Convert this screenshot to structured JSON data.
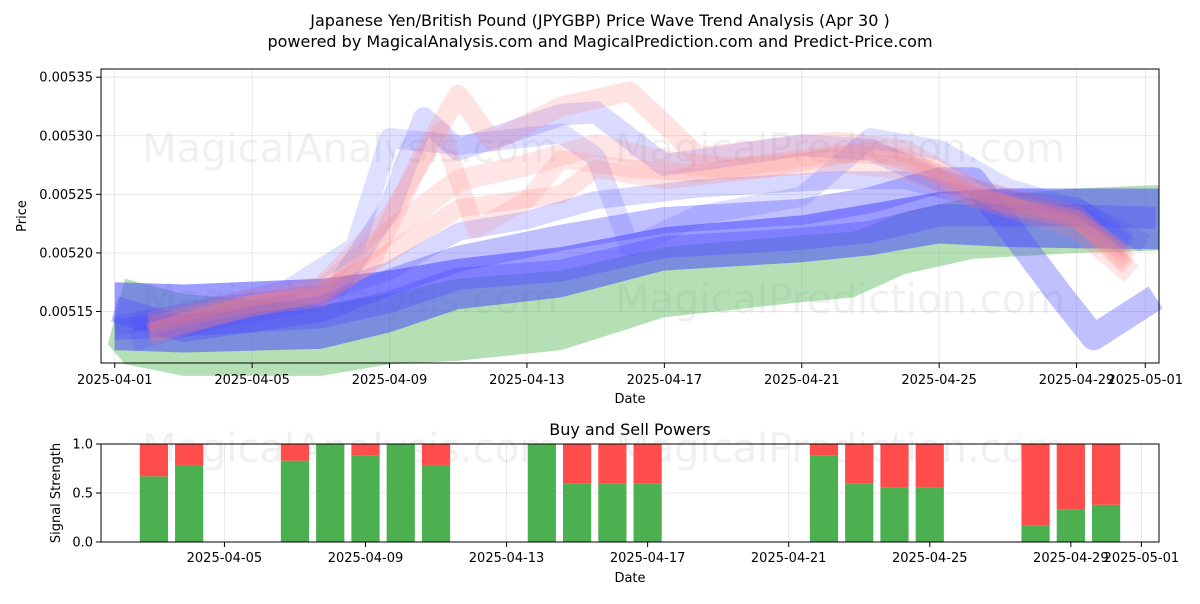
{
  "colors": {
    "buy": "#4caf50",
    "sell": "#ff4d4d",
    "blue_wave": "#4b4bff",
    "red_wave": "#ff8080",
    "green_wave": "#5cb85c"
  },
  "watermark": {
    "text_1": "MagicalAnalysis.com",
    "text_2": "MagicalPrediction.com"
  },
  "chart_data": [
    {
      "type": "area",
      "title": "Japanese Yen/British Pound (JPYGBP) Price Wave Trend Analysis (Apr 30 )",
      "subtitle": "powered by MagicalAnalysis.com and MagicalPrediction.com and Predict-Price.com",
      "xlabel": "Date",
      "ylabel": "Price",
      "x_tick_labels": [
        "2025-04-01",
        "2025-04-05",
        "2025-04-09",
        "2025-04-13",
        "2025-04-17",
        "2025-04-21",
        "2025-04-25",
        "2025-04-29",
        "2025-05-01"
      ],
      "x_tick_days": [
        0,
        4,
        8,
        12,
        16,
        20,
        24,
        28,
        30
      ],
      "y_tick_labels": [
        "0.00515",
        "0.00520",
        "0.00525",
        "0.00530",
        "0.00535"
      ],
      "y_tick_values": [
        0.00515,
        0.0052,
        0.00525,
        0.0053,
        0.00535
      ],
      "xlim": [
        -0.4,
        30.4
      ],
      "ylim": [
        0.005106,
        0.005357
      ],
      "grid": true,
      "band_series": [
        {
          "name": "green band",
          "color_key": "green_wave",
          "x": [
            -0.2,
            0.3,
            2,
            6,
            8,
            10,
            13,
            16,
            20,
            21.5,
            23,
            25,
            28,
            30.4
          ],
          "upper": [
            0.005122,
            0.005178,
            0.005165,
            0.005155,
            0.005165,
            0.005178,
            0.005185,
            0.005205,
            0.005215,
            0.005218,
            0.005235,
            0.005248,
            0.005255,
            0.005258
          ],
          "lower": [
            0.005122,
            0.005105,
            0.005095,
            0.005095,
            0.005105,
            0.005108,
            0.005117,
            0.005145,
            0.005158,
            0.005162,
            0.005182,
            0.005195,
            0.0052,
            0.005202
          ]
        },
        {
          "name": "blue band wide",
          "color_key": "blue_wave",
          "x": [
            0,
            2,
            6,
            8,
            10,
            13,
            16,
            20,
            22,
            24,
            26,
            28,
            30.4
          ],
          "upper": [
            0.005175,
            0.005173,
            0.005178,
            0.005185,
            0.005195,
            0.005205,
            0.005222,
            0.005232,
            0.005242,
            0.005252,
            0.005255,
            0.005255,
            0.005255
          ],
          "lower": [
            0.005117,
            0.005115,
            0.005118,
            0.005132,
            0.005152,
            0.005162,
            0.005185,
            0.005192,
            0.005198,
            0.005208,
            0.005205,
            0.005204,
            0.005203
          ]
        }
      ],
      "wave_series": [
        {
          "color_key": "blue_wave",
          "x": [
            0,
            2,
            6,
            8,
            10,
            13,
            16,
            20,
            22,
            24,
            26,
            28,
            30.3
          ],
          "y": [
            0.005135,
            0.005138,
            0.005145,
            0.005158,
            0.005178,
            0.005185,
            0.005205,
            0.005212,
            0.005218,
            0.005232,
            0.005232,
            0.005232,
            0.00523
          ]
        },
        {
          "color_key": "blue_wave",
          "x": [
            0,
            2,
            6,
            8,
            10,
            13,
            16,
            20,
            22,
            24,
            25,
            27.5,
            28.5,
            30.3
          ],
          "y": [
            0.005152,
            0.005135,
            0.005152,
            0.005175,
            0.005195,
            0.005213,
            0.005228,
            0.005235,
            0.005245,
            0.005262,
            0.005262,
            0.005165,
            0.005128,
            0.005162
          ]
        },
        {
          "color_key": "blue_wave",
          "x": [
            0,
            2,
            5,
            7,
            8,
            10,
            13,
            14,
            15,
            17,
            20,
            22,
            24,
            26,
            28,
            30
          ],
          "y": [
            0.005138,
            0.005148,
            0.005168,
            0.005205,
            0.005298,
            0.005292,
            0.005302,
            0.005282,
            0.005205,
            0.005232,
            0.005248,
            0.005298,
            0.005288,
            0.005255,
            0.005238,
            0.005208
          ]
        },
        {
          "color_key": "blue_wave",
          "x": [
            0.5,
            2.5,
            5.5,
            6.5,
            8,
            9,
            10,
            13,
            14,
            16,
            20,
            22,
            24,
            26,
            28,
            29.5
          ],
          "y": [
            0.005125,
            0.005142,
            0.005158,
            0.005172,
            0.005238,
            0.005315,
            0.005288,
            0.005318,
            0.00532,
            0.005275,
            0.005292,
            0.005288,
            0.005262,
            0.005245,
            0.005232,
            0.005205
          ]
        },
        {
          "color_key": "blue_wave",
          "x": [
            0.5,
            3,
            6,
            8,
            10,
            12,
            14,
            17,
            21,
            23,
            25,
            28,
            29.5
          ],
          "y": [
            0.00514,
            0.005155,
            0.005165,
            0.005185,
            0.005218,
            0.005228,
            0.005245,
            0.005255,
            0.005262,
            0.005262,
            0.005248,
            0.00524,
            0.00521
          ]
        },
        {
          "color_key": "red_wave",
          "x": [
            1,
            4,
            6,
            7.5,
            9,
            10,
            11,
            13,
            15,
            17,
            21,
            23,
            25,
            28,
            29.5
          ],
          "y": [
            0.005132,
            0.005155,
            0.005162,
            0.005195,
            0.005285,
            0.005335,
            0.005295,
            0.005325,
            0.005338,
            0.005282,
            0.005295,
            0.005288,
            0.005255,
            0.005232,
            0.005192
          ]
        },
        {
          "color_key": "red_wave",
          "x": [
            1,
            4,
            6,
            8,
            9.5,
            10.5,
            12,
            13,
            15,
            17,
            21,
            23,
            25,
            28,
            29.5
          ],
          "y": [
            0.005142,
            0.005162,
            0.005172,
            0.005232,
            0.005305,
            0.00522,
            0.005245,
            0.00528,
            0.005272,
            0.005268,
            0.005285,
            0.005282,
            0.005248,
            0.00523,
            0.005188
          ]
        },
        {
          "color_key": "red_wave",
          "x": [
            1,
            3,
            6,
            8,
            10,
            12,
            14,
            16,
            18,
            21,
            23,
            25,
            28,
            29.6
          ],
          "y": [
            0.00513,
            0.005148,
            0.005168,
            0.005218,
            0.005262,
            0.005275,
            0.005292,
            0.005278,
            0.005272,
            0.005278,
            0.005272,
            0.005248,
            0.005222,
            0.005182
          ]
        },
        {
          "color_key": "red_wave",
          "x": [
            1,
            3,
            6,
            8,
            10,
            13,
            14,
            16,
            19,
            22,
            24,
            26,
            28,
            29.5
          ],
          "y": [
            0.005138,
            0.005152,
            0.005165,
            0.0052,
            0.005238,
            0.00525,
            0.005272,
            0.005262,
            0.005272,
            0.005288,
            0.005268,
            0.00524,
            0.005228,
            0.005198
          ]
        }
      ]
    },
    {
      "type": "bar",
      "title": "Buy and Sell Powers",
      "xlabel": "Date",
      "ylabel": "Signal Strength",
      "x_tick_labels": [
        "2025-04-05",
        "2025-04-09",
        "2025-04-13",
        "2025-04-17",
        "2025-04-21",
        "2025-04-25",
        "2025-04-29",
        "2025-05-01"
      ],
      "x_tick_days": [
        4,
        8,
        12,
        16,
        20,
        24,
        28,
        30
      ],
      "y_tick_labels": [
        "0.0",
        "0.5",
        "1.0"
      ],
      "y_tick_values": [
        0,
        0.5,
        1
      ],
      "xlim": [
        0.5,
        30.5
      ],
      "ylim": [
        0,
        1
      ],
      "grid": true,
      "bars": [
        {
          "day": 2,
          "buy": 0.67,
          "sell": 0.33
        },
        {
          "day": 3,
          "buy": 0.78,
          "sell": 0.22
        },
        {
          "day": 6,
          "buy": 0.83,
          "sell": 0.17
        },
        {
          "day": 7,
          "buy": 1.0,
          "sell": 0.0
        },
        {
          "day": 8,
          "buy": 0.88,
          "sell": 0.12
        },
        {
          "day": 9,
          "buy": 1.0,
          "sell": 0.0
        },
        {
          "day": 10,
          "buy": 0.78,
          "sell": 0.22
        },
        {
          "day": 13,
          "buy": 1.0,
          "sell": 0.0
        },
        {
          "day": 14,
          "buy": 0.6,
          "sell": 0.4
        },
        {
          "day": 15,
          "buy": 0.6,
          "sell": 0.4
        },
        {
          "day": 16,
          "buy": 0.6,
          "sell": 0.4
        },
        {
          "day": 21,
          "buy": 0.88,
          "sell": 0.12
        },
        {
          "day": 22,
          "buy": 0.6,
          "sell": 0.4
        },
        {
          "day": 23,
          "buy": 0.56,
          "sell": 0.44
        },
        {
          "day": 24,
          "buy": 0.56,
          "sell": 0.44
        },
        {
          "day": 27,
          "buy": 0.17,
          "sell": 0.83
        },
        {
          "day": 28,
          "buy": 0.33,
          "sell": 0.67
        },
        {
          "day": 29,
          "buy": 0.38,
          "sell": 0.62
        }
      ]
    }
  ]
}
